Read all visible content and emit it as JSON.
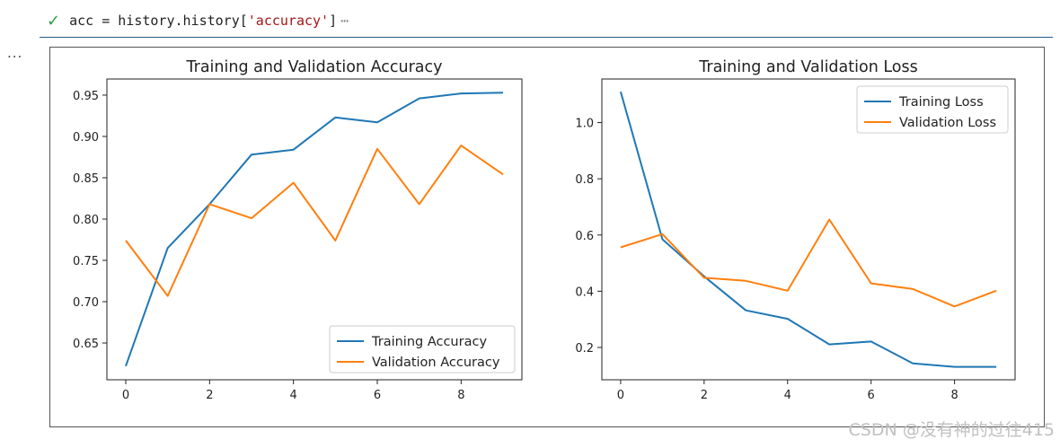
{
  "cell": {
    "status_icon": "check-icon",
    "code_prefix": "acc = history.history[",
    "code_string": "'accuracy'",
    "code_suffix": "]",
    "ellipsis": "⋯",
    "output_prompt": "..."
  },
  "watermark": "CSDN @没有神的过往415",
  "colors": {
    "train": "#1f77b4",
    "val": "#ff7f0e"
  },
  "chart_data": [
    {
      "type": "line",
      "title": "Training and Validation Accuracy",
      "xlabel": "",
      "ylabel": "",
      "x": [
        0,
        1,
        2,
        3,
        4,
        5,
        6,
        7,
        8,
        9
      ],
      "xlim": [
        -0.45,
        9.45
      ],
      "ylim": [
        0.6055,
        0.9695
      ],
      "xticks": [
        0,
        2,
        4,
        6,
        8
      ],
      "xtick_labels": [
        "0",
        "2",
        "4",
        "6",
        "8"
      ],
      "yticks": [
        0.65,
        0.7,
        0.75,
        0.8,
        0.85,
        0.9,
        0.95
      ],
      "ytick_labels": [
        "0.65",
        "0.70",
        "0.75",
        "0.80",
        "0.85",
        "0.90",
        "0.95"
      ],
      "legend_position": "lower-right",
      "series": [
        {
          "name": "Training Accuracy",
          "values": [
            0.622,
            0.765,
            0.818,
            0.878,
            0.884,
            0.923,
            0.917,
            0.946,
            0.952,
            0.953
          ]
        },
        {
          "name": "Validation Accuracy",
          "values": [
            0.774,
            0.707,
            0.818,
            0.801,
            0.844,
            0.774,
            0.885,
            0.818,
            0.889,
            0.854
          ]
        }
      ]
    },
    {
      "type": "line",
      "title": "Training and Validation Loss",
      "xlabel": "",
      "ylabel": "",
      "x": [
        0,
        1,
        2,
        3,
        4,
        5,
        6,
        7,
        8,
        9
      ],
      "xlim": [
        -0.45,
        9.45
      ],
      "ylim": [
        0.085,
        1.155
      ],
      "xticks": [
        0,
        2,
        4,
        6,
        8
      ],
      "xtick_labels": [
        "0",
        "2",
        "4",
        "6",
        "8"
      ],
      "yticks": [
        0.2,
        0.4,
        0.6,
        0.8,
        1.0
      ],
      "ytick_labels": [
        "0.2",
        "0.4",
        "0.6",
        "0.8",
        "1.0"
      ],
      "legend_position": "upper-right",
      "series": [
        {
          "name": "Training Loss",
          "values": [
            1.11,
            0.585,
            0.453,
            0.332,
            0.302,
            0.211,
            0.221,
            0.143,
            0.131,
            0.131
          ]
        },
        {
          "name": "Validation Loss",
          "values": [
            0.556,
            0.603,
            0.448,
            0.437,
            0.402,
            0.655,
            0.428,
            0.408,
            0.346,
            0.402
          ]
        }
      ]
    }
  ]
}
